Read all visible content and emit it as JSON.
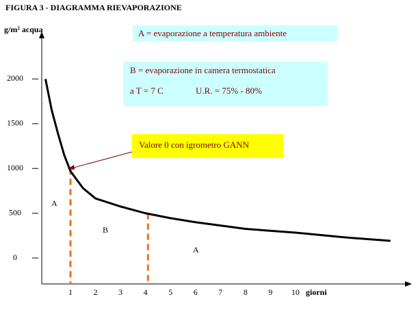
{
  "chart_data": {
    "type": "line",
    "title": "FIGURA 3  -  DIAGRAMMA RIEVAPORAZIONE",
    "y_label": "g/m² acqua",
    "x_label": "giorni",
    "x": [
      0,
      0.25,
      0.5,
      0.75,
      1,
      1.5,
      2,
      3,
      4,
      5,
      6,
      8,
      10,
      12,
      13.8
    ],
    "series": [
      {
        "color": "#000000",
        "values": [
          2000,
          1650,
          1390,
          1150,
          970,
          780,
          665,
          575,
          500,
          445,
          400,
          325,
          283,
          230,
          192
        ]
      }
    ],
    "xlim": [
      -0.15,
      14.6
    ],
    "ylim": [
      -290,
      2500
    ],
    "xticks": [
      1,
      2,
      3,
      4,
      5,
      6,
      7,
      8,
      9,
      10
    ],
    "yticks": [
      0,
      500,
      1000,
      1500,
      2000
    ],
    "grid": false,
    "markers": [
      {
        "x": 1,
        "y": 1000,
        "color": "#f07020"
      },
      {
        "x": 4.1,
        "y": 500,
        "color": "#f07020"
      }
    ],
    "box_a": "A = evaporazione a temperatura ambiente",
    "box_b": [
      "B = evaporazione in camera termostatica",
      "a T = 7  C",
      "U.R. =  75% - 80%"
    ],
    "box_gann": "Valore 0 con igrometro GANN",
    "region_labels": [
      "A",
      "B",
      "A"
    ]
  }
}
